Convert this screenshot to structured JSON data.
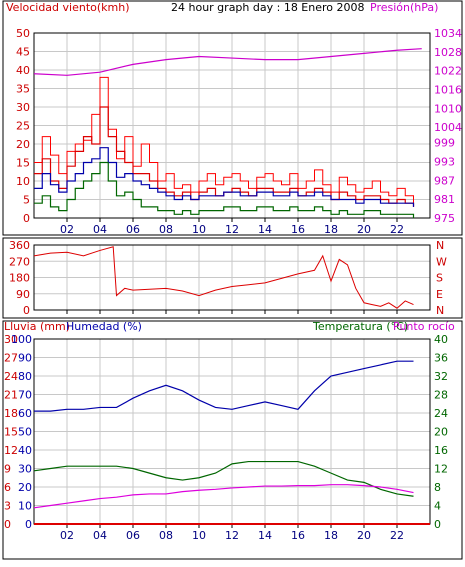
{
  "colors": {
    "wind": "#dd0000",
    "gust": "#ff0000",
    "pressure": "#cc00cc",
    "humidity": "#0000aa",
    "temperature": "#006600",
    "dewpoint": "#dd00dd",
    "rain": "#dd0000",
    "frame": "#000000",
    "grid": "#c8c8c8"
  },
  "header": {
    "wind_label": "Velocidad viento(kmh)",
    "title": "24 hour graph day : 18 Enero 2008",
    "pressure_label": "Presión(hPa)"
  },
  "x_ticks": [
    "02",
    "04",
    "06",
    "08",
    "10",
    "12",
    "14",
    "16",
    "18",
    "20",
    "22"
  ],
  "labels": {
    "rain": "Lluvia (mm)",
    "humidity": "Humedad (%)",
    "temperature": "Temperatura (°C)",
    "dewpoint": "Punto rocío"
  },
  "chart_data": [
    {
      "type": "line",
      "title": "24 hour graph day : 18 Enero 2008",
      "xlabel": "",
      "ylabel": "Velocidad viento(kmh)",
      "y2label": "Presión(hPa)",
      "xlim": [
        0,
        24
      ],
      "ylim": [
        0,
        50
      ],
      "y2lim": [
        975,
        1034
      ],
      "y_ticks": [
        0,
        5,
        10,
        15,
        20,
        25,
        30,
        35,
        40,
        45,
        50
      ],
      "y2_ticks": [
        975,
        981,
        987,
        993,
        999,
        1004,
        1010,
        1016,
        1022,
        1028,
        1034
      ],
      "series": [
        {
          "name": "gust",
          "color": "#ff0000",
          "x": [
            0,
            0.5,
            1,
            1.5,
            2,
            2.5,
            3,
            3.5,
            4,
            4.5,
            5,
            5.5,
            6,
            6.5,
            7,
            7.5,
            8,
            8.5,
            9,
            9.5,
            10,
            10.5,
            11,
            11.5,
            12,
            12.5,
            13,
            13.5,
            14,
            14.5,
            15,
            15.5,
            16,
            16.5,
            17,
            17.5,
            18,
            18.5,
            19,
            19.5,
            20,
            20.5,
            21,
            21.5,
            22,
            22.5,
            23
          ],
          "values": [
            15,
            22,
            17,
            12,
            18,
            20,
            21,
            28,
            38,
            24,
            16,
            22,
            14,
            20,
            15,
            10,
            12,
            8,
            9,
            7,
            10,
            12,
            9,
            11,
            12,
            10,
            8,
            11,
            12,
            10,
            9,
            12,
            8,
            10,
            13,
            9,
            7,
            11,
            9,
            7,
            8,
            10,
            7,
            6,
            8,
            6,
            4
          ]
        },
        {
          "name": "wind",
          "color": "#dd0000",
          "x": [
            0,
            0.5,
            1,
            1.5,
            2,
            2.5,
            3,
            3.5,
            4,
            4.5,
            5,
            5.5,
            6,
            6.5,
            7,
            7.5,
            8,
            8.5,
            9,
            9.5,
            10,
            10.5,
            11,
            11.5,
            12,
            12.5,
            13,
            13.5,
            14,
            14.5,
            15,
            15.5,
            16,
            16.5,
            17,
            17.5,
            18,
            18.5,
            19,
            19.5,
            20,
            20.5,
            21,
            21.5,
            22,
            22.5,
            23
          ],
          "values": [
            12,
            16,
            10,
            8,
            14,
            18,
            22,
            20,
            30,
            22,
            18,
            15,
            12,
            12,
            10,
            8,
            7,
            6,
            7,
            5,
            7,
            8,
            6,
            7,
            8,
            7,
            6,
            8,
            8,
            7,
            7,
            8,
            6,
            7,
            8,
            7,
            5,
            7,
            6,
            5,
            6,
            6,
            5,
            4,
            5,
            4,
            3
          ]
        },
        {
          "name": "average",
          "color": "#0000aa",
          "x": [
            0,
            0.5,
            1,
            1.5,
            2,
            2.5,
            3,
            3.5,
            4,
            4.5,
            5,
            5.5,
            6,
            6.5,
            7,
            7.5,
            8,
            8.5,
            9,
            9.5,
            10,
            10.5,
            11,
            11.5,
            12,
            12.5,
            13,
            13.5,
            14,
            14.5,
            15,
            15.5,
            16,
            16.5,
            17,
            17.5,
            18,
            18.5,
            19,
            19.5,
            20,
            20.5,
            21,
            21.5,
            22,
            22.5,
            23
          ],
          "values": [
            8,
            12,
            9,
            7,
            10,
            12,
            15,
            16,
            19,
            15,
            11,
            12,
            10,
            9,
            8,
            7,
            6,
            5,
            6,
            5,
            6,
            6,
            6,
            7,
            7,
            6,
            6,
            7,
            7,
            6,
            6,
            7,
            6,
            6,
            7,
            6,
            5,
            5,
            5,
            4,
            5,
            5,
            4,
            4,
            4,
            4,
            3
          ]
        },
        {
          "name": "minimum",
          "color": "#006600",
          "x": [
            0,
            0.5,
            1,
            1.5,
            2,
            2.5,
            3,
            3.5,
            4,
            4.5,
            5,
            5.5,
            6,
            6.5,
            7,
            7.5,
            8,
            8.5,
            9,
            9.5,
            10,
            10.5,
            11,
            11.5,
            12,
            12.5,
            13,
            13.5,
            14,
            14.5,
            15,
            15.5,
            16,
            16.5,
            17,
            17.5,
            18,
            18.5,
            19,
            19.5,
            20,
            20.5,
            21,
            21.5,
            22,
            22.5,
            23
          ],
          "values": [
            4,
            6,
            3,
            2,
            5,
            8,
            10,
            12,
            15,
            10,
            6,
            7,
            5,
            3,
            3,
            2,
            2,
            1,
            2,
            1,
            2,
            2,
            2,
            3,
            3,
            2,
            2,
            3,
            3,
            2,
            2,
            3,
            2,
            2,
            3,
            2,
            1,
            2,
            1,
            1,
            2,
            2,
            1,
            1,
            1,
            1,
            0
          ]
        },
        {
          "name": "pressure",
          "axis": "right",
          "color": "#cc00cc",
          "x": [
            0,
            2,
            4,
            6,
            8,
            10,
            12,
            14,
            16,
            18,
            20,
            22,
            23.5
          ],
          "values": [
            1021,
            1020.5,
            1021.5,
            1024,
            1025.5,
            1026.5,
            1026,
            1025.5,
            1025.5,
            1026.5,
            1027.5,
            1028.5,
            1029
          ]
        }
      ]
    },
    {
      "type": "scatter",
      "title": "",
      "ylabel": "",
      "xlim": [
        0,
        24
      ],
      "ylim": [
        0,
        360
      ],
      "y_ticks": [
        0,
        90,
        180,
        270,
        360
      ],
      "y2_ticks": [
        "N",
        "W",
        "S",
        "E",
        "N"
      ],
      "series": [
        {
          "name": "direction",
          "color": "#dd0000",
          "x": [
            0,
            1,
            2,
            3,
            4,
            4.8,
            5,
            5.5,
            6,
            7,
            8,
            9,
            10,
            11,
            12,
            13,
            14,
            15,
            16,
            17,
            17.5,
            18,
            18.5,
            19,
            19.5,
            20,
            20.5,
            21,
            21.5,
            22,
            22.5,
            23
          ],
          "values": [
            300,
            315,
            320,
            300,
            330,
            350,
            80,
            120,
            110,
            115,
            120,
            105,
            80,
            110,
            130,
            140,
            150,
            175,
            200,
            220,
            300,
            160,
            280,
            250,
            120,
            40,
            30,
            20,
            40,
            10,
            50,
            30
          ]
        }
      ]
    },
    {
      "type": "line",
      "title": "",
      "xlim": [
        0,
        24
      ],
      "ylim": [
        0,
        100
      ],
      "y_ticks": [
        0,
        10,
        20,
        30,
        40,
        50,
        60,
        70,
        80,
        90,
        100
      ],
      "y_ticks_rain": [
        0,
        3,
        6,
        9,
        12,
        15,
        18,
        21,
        24,
        27,
        30
      ],
      "y_ticks_humidity": [
        0,
        4,
        8,
        12,
        16,
        20,
        24,
        28,
        32,
        36,
        40
      ],
      "y2_ticks": [
        0,
        4,
        8,
        12,
        16,
        20,
        24,
        28,
        32,
        36,
        40
      ],
      "series": [
        {
          "name": "Lluvia (mm)",
          "color": "#dd0000",
          "x": [
            0,
            24
          ],
          "values": [
            0,
            0
          ]
        },
        {
          "name": "Humedad (%)",
          "color": "#0000aa",
          "x": [
            0,
            1,
            2,
            3,
            4,
            5,
            6,
            7,
            8,
            9,
            10,
            11,
            12,
            13,
            14,
            15,
            16,
            17,
            18,
            19,
            20,
            21,
            22,
            23
          ],
          "values": [
            61,
            61,
            62,
            62,
            63,
            63,
            68,
            72,
            75,
            72,
            67,
            63,
            62,
            64,
            66,
            64,
            62,
            72,
            80,
            82,
            84,
            86,
            88,
            88
          ]
        },
        {
          "name": "Temperatura (°C)",
          "color": "#006600",
          "x": [
            0,
            1,
            2,
            3,
            4,
            5,
            6,
            7,
            8,
            9,
            10,
            11,
            12,
            13,
            14,
            15,
            16,
            17,
            18,
            19,
            20,
            21,
            22,
            23
          ],
          "values": [
            11.5,
            12,
            12.5,
            12.5,
            12.5,
            12.5,
            12,
            11,
            10,
            9.5,
            10,
            11,
            13,
            13.5,
            13.5,
            13.5,
            13.5,
            12.5,
            11,
            9.5,
            9,
            7.5,
            6.5,
            6
          ]
        },
        {
          "name": "Punto rocío",
          "color": "#dd00dd",
          "x": [
            0,
            1,
            2,
            3,
            4,
            5,
            6,
            7,
            8,
            9,
            10,
            11,
            12,
            13,
            14,
            15,
            16,
            17,
            18,
            19,
            20,
            21,
            22,
            23
          ],
          "values": [
            3.5,
            4,
            4.5,
            5,
            5.5,
            5.8,
            6.3,
            6.5,
            6.5,
            7,
            7.3,
            7.5,
            7.8,
            8,
            8.2,
            8.2,
            8.3,
            8.3,
            8.5,
            8.5,
            8.3,
            8,
            7.5,
            6.8
          ]
        }
      ]
    }
  ]
}
